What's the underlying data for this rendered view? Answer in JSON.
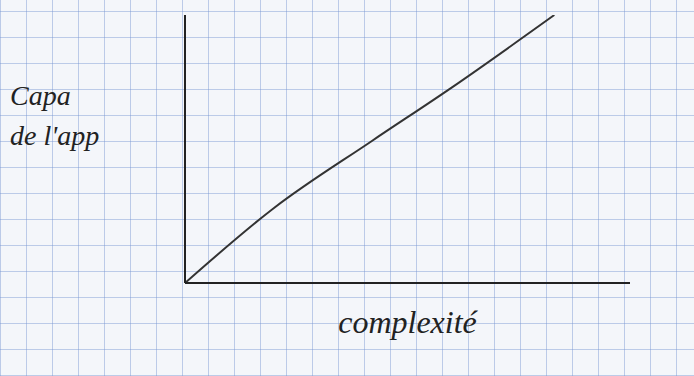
{
  "chart_data": {
    "type": "line",
    "x": [
      0,
      2,
      4.2,
      6,
      8.3
    ],
    "values": [
      0,
      2.8,
      5.3,
      7.3,
      10
    ],
    "x_label": "complexité",
    "y_label": "Capa de l'app",
    "xlim": [
      0,
      10
    ],
    "ylim": [
      0,
      10
    ],
    "tick_labels": false,
    "color": "#333333"
  }
}
